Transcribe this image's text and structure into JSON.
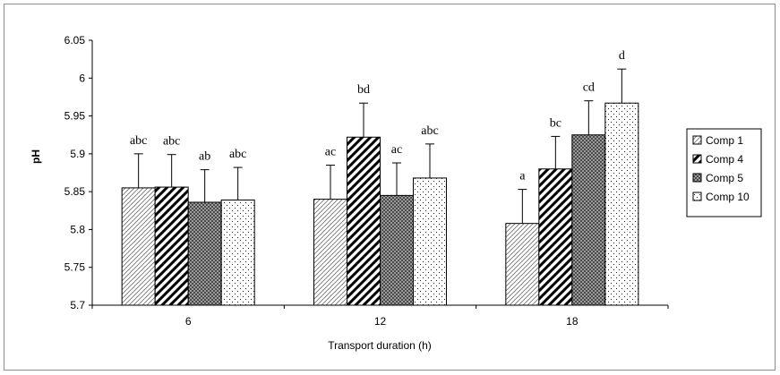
{
  "chart_data": {
    "type": "bar",
    "title": "",
    "xlabel": "Transport duration (h)",
    "ylabel": "pH",
    "ylim": [
      5.7,
      6.05
    ],
    "yticks": [
      "5.7",
      "5.75",
      "5.8",
      "5.85",
      "5.9",
      "5.95",
      "6",
      "6.05"
    ],
    "categories": [
      "6",
      "12",
      "18"
    ],
    "grid": false,
    "legend_position": "right",
    "series": [
      {
        "name": "Comp 1",
        "pattern": "diagonal-light",
        "values": [
          5.855,
          5.84,
          5.808
        ],
        "error": [
          0.045,
          0.045,
          0.045
        ],
        "labels": [
          "abc",
          "ac",
          "a"
        ]
      },
      {
        "name": "Comp 4",
        "pattern": "diagonal-bold",
        "values": [
          5.856,
          5.922,
          5.88
        ],
        "error": [
          0.043,
          0.045,
          0.043
        ],
        "labels": [
          "abc",
          "bd",
          "bc"
        ]
      },
      {
        "name": "Comp 5",
        "pattern": "checker-dark",
        "values": [
          5.836,
          5.845,
          5.925
        ],
        "error": [
          0.043,
          0.043,
          0.045
        ],
        "labels": [
          "ab",
          "ac",
          "cd"
        ]
      },
      {
        "name": "Comp 10",
        "pattern": "dots",
        "values": [
          5.839,
          5.868,
          5.967
        ],
        "error": [
          0.043,
          0.045,
          0.045
        ],
        "labels": [
          "abc",
          "abc",
          "d"
        ]
      }
    ]
  }
}
